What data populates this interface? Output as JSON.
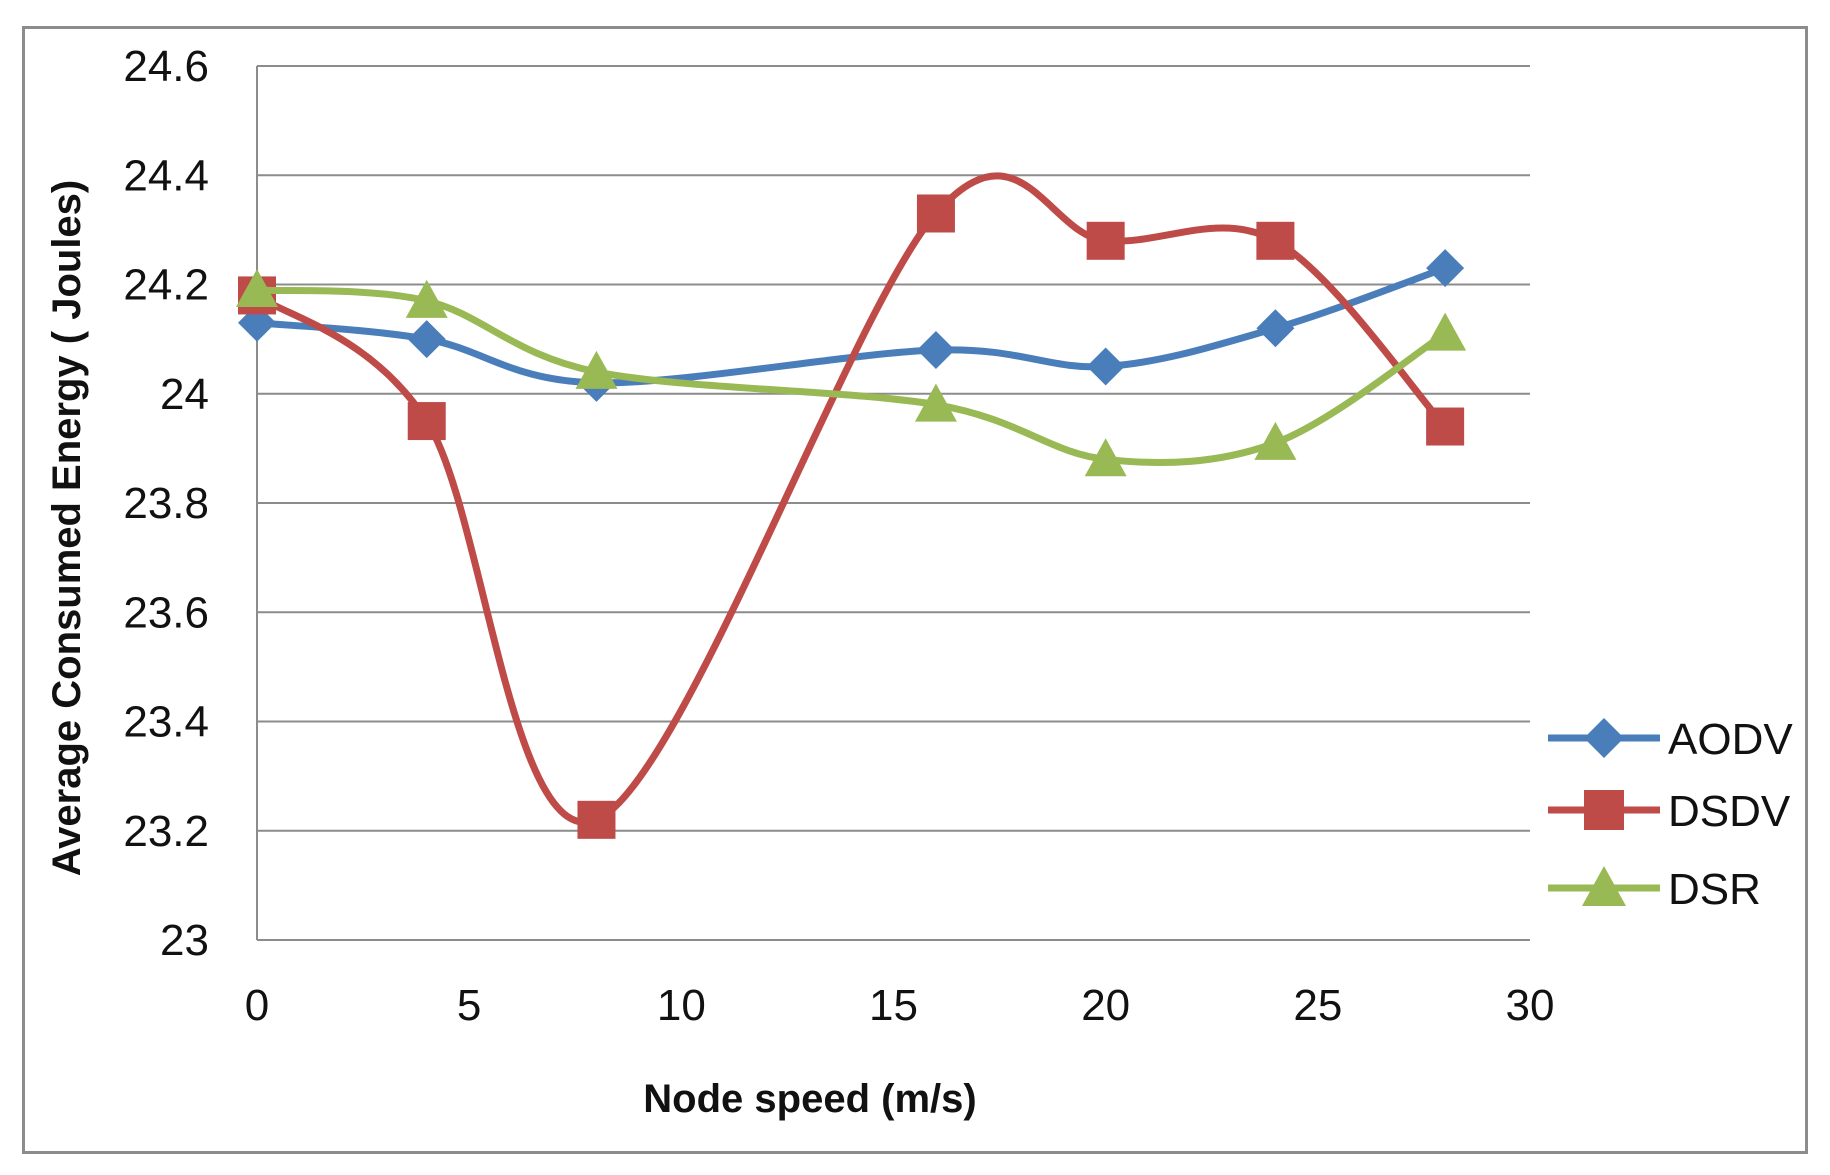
{
  "chart_data": {
    "type": "line",
    "title": "",
    "xlabel": "Node speed (m/s)",
    "ylabel": "Average Consumed Energy ( Joules)",
    "xlim": [
      0,
      30
    ],
    "ylim": [
      23,
      24.6
    ],
    "x_ticks": [
      0,
      5,
      10,
      15,
      20,
      25,
      30
    ],
    "y_ticks": [
      23,
      23.2,
      23.4,
      23.6,
      23.8,
      24,
      24.2,
      24.4,
      24.6
    ],
    "x_tick_labels": [
      "0",
      "5",
      "10",
      "15",
      "20",
      "25",
      "30"
    ],
    "y_tick_labels": [
      "23",
      "23.2",
      "23.4",
      "23.6",
      "23.8",
      "24",
      "24.2",
      "24.4",
      "24.6"
    ],
    "grid": "horizontal",
    "legend_position": "right",
    "x": [
      0,
      4,
      8,
      16,
      20,
      24,
      28
    ],
    "series": [
      {
        "name": "AODV",
        "values": [
          24.13,
          24.1,
          24.02,
          24.08,
          24.05,
          24.12,
          24.23
        ],
        "color": "#4a7ebb",
        "marker": "diamond"
      },
      {
        "name": "DSDV",
        "values": [
          24.18,
          23.95,
          23.22,
          24.33,
          24.28,
          24.28,
          23.94
        ],
        "color": "#be4b48",
        "marker": "square"
      },
      {
        "name": "DSR",
        "values": [
          24.19,
          24.17,
          24.04,
          23.98,
          23.88,
          23.91,
          24.11
        ],
        "color": "#98b954",
        "marker": "triangle"
      }
    ]
  }
}
